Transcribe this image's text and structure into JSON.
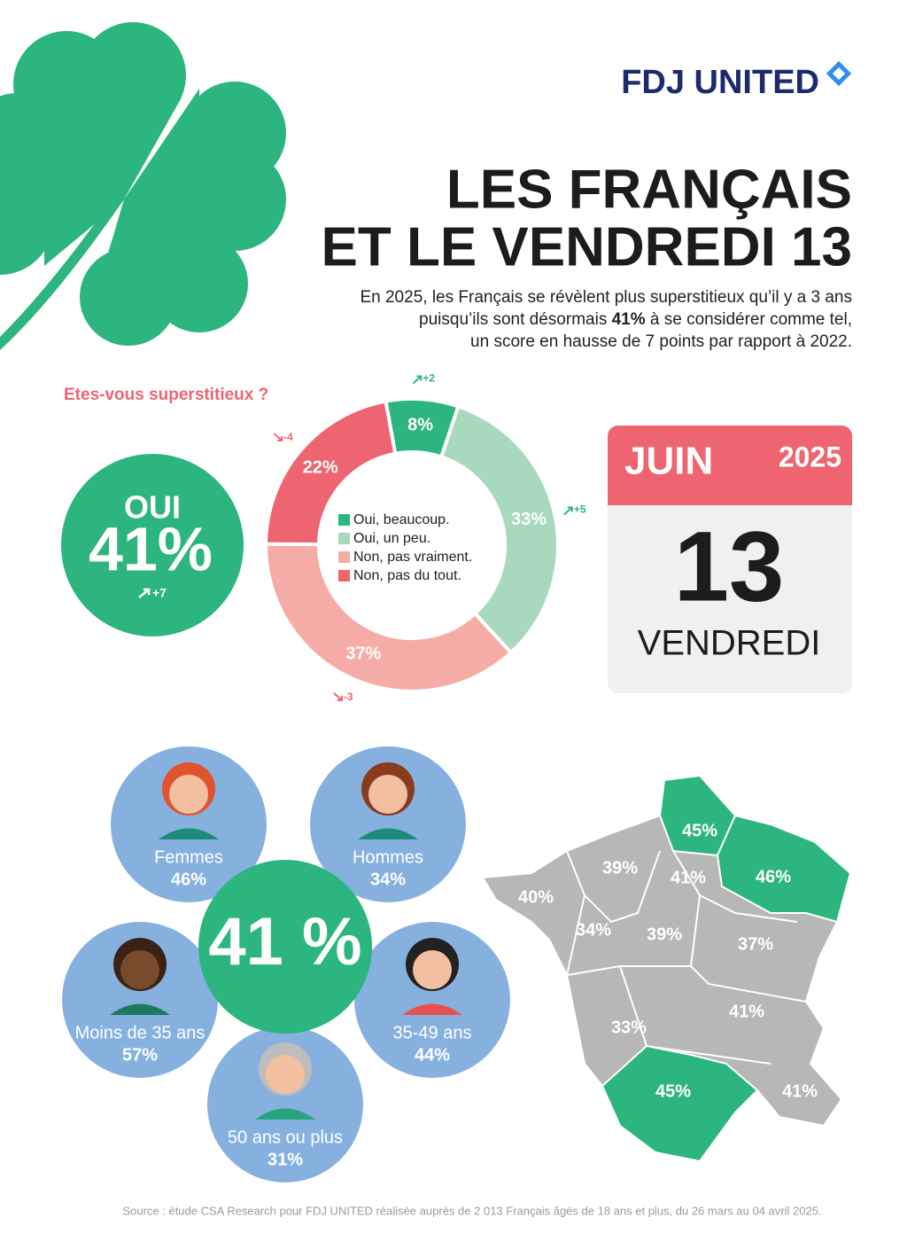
{
  "brand": "FDJ UNITED",
  "title": {
    "line1": "LES FRANÇAIS",
    "line2": "ET LE VENDREDI 13"
  },
  "intro": {
    "line1": "En 2025, les Français se révèlent plus superstitieux qu’il y a 3 ans",
    "line2_before": "puisqu’ils sont désormais ",
    "line2_bold": "41%",
    "line2_after": " à se considérer comme tel,",
    "line3": "un score en hausse de 7 points par rapport à 2022."
  },
  "chart_data": {
    "type": "donut",
    "title": "Etes-vous superstitieux ?",
    "categories": [
      "Oui, beaucoup.",
      "Oui, un peu.",
      "Non, pas vraiment.",
      "Non, pas du tout."
    ],
    "values": [
      8,
      33,
      37,
      22
    ],
    "value_labels": [
      "8%",
      "33%",
      "37%",
      "22%"
    ],
    "change_labels": [
      "+2",
      "+5",
      "-3",
      "-4"
    ],
    "colors": [
      "#2db57f",
      "#a8d9bd",
      "#f6aca6",
      "#ee6470"
    ]
  },
  "yes_badge": {
    "label": "OUI",
    "value": "41%",
    "change": "+7"
  },
  "calendar": {
    "month": "JUIN",
    "year": "2025",
    "day": "13",
    "weekday": "VENDREDI"
  },
  "demographics": {
    "center": "41 %",
    "groups": [
      {
        "label": "Femmes",
        "value": "46%"
      },
      {
        "label": "Hommes",
        "value": "34%"
      },
      {
        "label": "Moins de 35 ans",
        "value": "57%"
      },
      {
        "label": "35-49 ans",
        "value": "44%"
      },
      {
        "label": "50 ans ou plus",
        "value": "31%"
      }
    ]
  },
  "map": {
    "highlight_color": "#2db57f",
    "base_color": "#b7b7b7",
    "regions": [
      {
        "label": "45%",
        "highlighted": true
      },
      {
        "label": "46%",
        "highlighted": true
      },
      {
        "label": "39%",
        "highlighted": false
      },
      {
        "label": "41%",
        "highlighted": false
      },
      {
        "label": "40%",
        "highlighted": false
      },
      {
        "label": "34%",
        "highlighted": false
      },
      {
        "label": "39%",
        "highlighted": false
      },
      {
        "label": "37%",
        "highlighted": false
      },
      {
        "label": "41%",
        "highlighted": false
      },
      {
        "label": "33%",
        "highlighted": false
      },
      {
        "label": "45%",
        "highlighted": true
      },
      {
        "label": "41%",
        "highlighted": false
      }
    ]
  },
  "source": "Source : étude CSA Research pour FDJ UNITED réalisée auprès de 2 013 Français âgés de 18 ans et plus, du 26 mars au 04 avril 2025."
}
